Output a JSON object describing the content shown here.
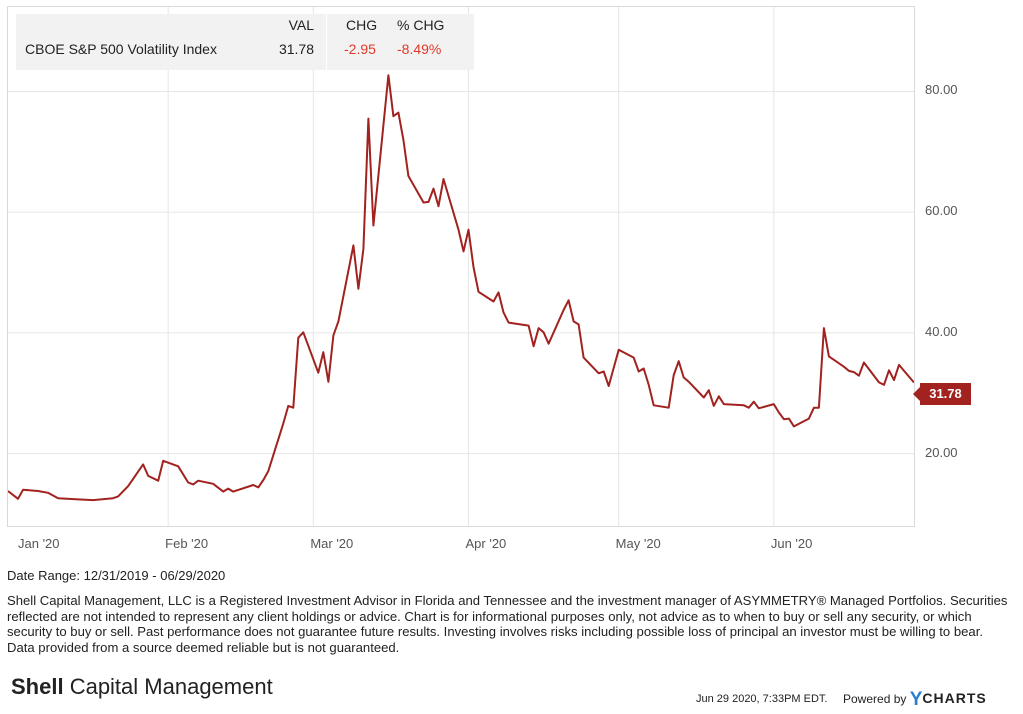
{
  "legend": {
    "headers": {
      "val": "VAL",
      "chg": "CHG",
      "pct": "% CHG"
    },
    "name": "CBOE S&P 500 Volatility Index",
    "val": "31.78",
    "chg": "-2.95",
    "pct": "-8.49%"
  },
  "last_badge": "31.78",
  "date_range": "Date Range: 12/31/2019 - 06/29/2020",
  "disclaimer": "Shell Capital Management, LLC is a Registered Investment Advisor in Florida and Tennessee and the investment manager of ASYMMETRY® Managed Portfolios. Securities reflected are not intended to represent any client holdings or advice. Chart is for informational purposes only, not advice as to when to buy or sell any security, or which security to buy or sell. Past performance does not guarantee future results. Investing involves risks including possible loss of principal an investor must be willing to bear. Data provided from a source deemed reliable but is not guaranteed.",
  "brand": {
    "bold": "Shell",
    "rest": " Capital Management"
  },
  "timestamp": "Jun 29 2020, 7:33PM EDT.",
  "powered": {
    "label": "Powered by",
    "y": "Y",
    "charts": "CHARTS"
  },
  "colors": {
    "line": "#a1221e",
    "negative": "#e0392b",
    "grid": "#e6e6e6",
    "legend_bg": "#f2f2f2",
    "brand_blue": "#2a7fd1"
  },
  "chart_data": {
    "type": "line",
    "x_tick_labels": [
      "Jan '20",
      "Feb '20",
      "Mar '20",
      "Apr '20",
      "May '20",
      "Jun '20"
    ],
    "y_tick_labels": [
      "20.00",
      "40.00",
      "60.00",
      "80.00"
    ],
    "ylim": [
      8,
      94
    ],
    "xlim": [
      "2019-12-31",
      "2020-06-29"
    ],
    "grid": true,
    "series": [
      {
        "name": "CBOE S&P 500 Volatility Index",
        "points": [
          [
            "2019-12-31",
            13.8
          ],
          [
            "2020-01-02",
            12.5
          ],
          [
            "2020-01-03",
            14.0
          ],
          [
            "2020-01-06",
            13.8
          ],
          [
            "2020-01-08",
            13.5
          ],
          [
            "2020-01-10",
            12.6
          ],
          [
            "2020-01-14",
            12.4
          ],
          [
            "2020-01-17",
            12.3
          ],
          [
            "2020-01-21",
            12.6
          ],
          [
            "2020-01-22",
            12.9
          ],
          [
            "2020-01-24",
            14.6
          ],
          [
            "2020-01-27",
            18.2
          ],
          [
            "2020-01-28",
            16.3
          ],
          [
            "2020-01-30",
            15.5
          ],
          [
            "2020-01-31",
            18.8
          ],
          [
            "2020-02-03",
            17.9
          ],
          [
            "2020-02-05",
            15.2
          ],
          [
            "2020-02-06",
            14.9
          ],
          [
            "2020-02-07",
            15.5
          ],
          [
            "2020-02-10",
            15.0
          ],
          [
            "2020-02-12",
            13.7
          ],
          [
            "2020-02-13",
            14.2
          ],
          [
            "2020-02-14",
            13.7
          ],
          [
            "2020-02-18",
            14.8
          ],
          [
            "2020-02-19",
            14.4
          ],
          [
            "2020-02-20",
            15.6
          ],
          [
            "2020-02-21",
            17.1
          ],
          [
            "2020-02-24",
            25.0
          ],
          [
            "2020-02-25",
            27.9
          ],
          [
            "2020-02-26",
            27.6
          ],
          [
            "2020-02-27",
            39.2
          ],
          [
            "2020-02-28",
            40.1
          ],
          [
            "2020-03-02",
            33.4
          ],
          [
            "2020-03-03",
            36.8
          ],
          [
            "2020-03-04",
            31.9
          ],
          [
            "2020-03-05",
            39.6
          ],
          [
            "2020-03-06",
            41.9
          ],
          [
            "2020-03-09",
            54.5
          ],
          [
            "2020-03-10",
            47.3
          ],
          [
            "2020-03-11",
            53.9
          ],
          [
            "2020-03-12",
            75.5
          ],
          [
            "2020-03-13",
            57.8
          ],
          [
            "2020-03-16",
            82.7
          ],
          [
            "2020-03-17",
            75.9
          ],
          [
            "2020-03-18",
            76.5
          ],
          [
            "2020-03-19",
            72.0
          ],
          [
            "2020-03-20",
            66.0
          ],
          [
            "2020-03-23",
            61.6
          ],
          [
            "2020-03-24",
            61.7
          ],
          [
            "2020-03-25",
            63.9
          ],
          [
            "2020-03-26",
            61.0
          ],
          [
            "2020-03-27",
            65.5
          ],
          [
            "2020-03-30",
            57.1
          ],
          [
            "2020-03-31",
            53.5
          ],
          [
            "2020-04-01",
            57.1
          ],
          [
            "2020-04-02",
            50.9
          ],
          [
            "2020-04-03",
            46.8
          ],
          [
            "2020-04-06",
            45.2
          ],
          [
            "2020-04-07",
            46.7
          ],
          [
            "2020-04-08",
            43.4
          ],
          [
            "2020-04-09",
            41.7
          ],
          [
            "2020-04-13",
            41.2
          ],
          [
            "2020-04-14",
            37.8
          ],
          [
            "2020-04-15",
            40.8
          ],
          [
            "2020-04-16",
            40.1
          ],
          [
            "2020-04-17",
            38.2
          ],
          [
            "2020-04-20",
            43.8
          ],
          [
            "2020-04-21",
            45.4
          ],
          [
            "2020-04-22",
            41.9
          ],
          [
            "2020-04-23",
            41.4
          ],
          [
            "2020-04-24",
            35.9
          ],
          [
            "2020-04-27",
            33.3
          ],
          [
            "2020-04-28",
            33.6
          ],
          [
            "2020-04-29",
            31.2
          ],
          [
            "2020-04-30",
            34.2
          ],
          [
            "2020-05-01",
            37.2
          ],
          [
            "2020-05-04",
            35.9
          ],
          [
            "2020-05-05",
            33.6
          ],
          [
            "2020-05-06",
            34.1
          ],
          [
            "2020-05-07",
            31.4
          ],
          [
            "2020-05-08",
            28.0
          ],
          [
            "2020-05-11",
            27.6
          ],
          [
            "2020-05-12",
            33.0
          ],
          [
            "2020-05-13",
            35.3
          ],
          [
            "2020-05-14",
            32.6
          ],
          [
            "2020-05-15",
            31.9
          ],
          [
            "2020-05-18",
            29.3
          ],
          [
            "2020-05-19",
            30.5
          ],
          [
            "2020-05-20",
            27.9
          ],
          [
            "2020-05-21",
            29.5
          ],
          [
            "2020-05-22",
            28.2
          ],
          [
            "2020-05-26",
            28.0
          ],
          [
            "2020-05-27",
            27.6
          ],
          [
            "2020-05-28",
            28.6
          ],
          [
            "2020-05-29",
            27.5
          ],
          [
            "2020-06-01",
            28.2
          ],
          [
            "2020-06-02",
            26.8
          ],
          [
            "2020-06-03",
            25.7
          ],
          [
            "2020-06-04",
            25.8
          ],
          [
            "2020-06-05",
            24.5
          ],
          [
            "2020-06-08",
            25.8
          ],
          [
            "2020-06-09",
            27.6
          ],
          [
            "2020-06-10",
            27.6
          ],
          [
            "2020-06-11",
            40.8
          ],
          [
            "2020-06-12",
            36.1
          ],
          [
            "2020-06-15",
            34.4
          ],
          [
            "2020-06-16",
            33.7
          ],
          [
            "2020-06-17",
            33.5
          ],
          [
            "2020-06-18",
            32.9
          ],
          [
            "2020-06-19",
            35.1
          ],
          [
            "2020-06-22",
            31.8
          ],
          [
            "2020-06-23",
            31.4
          ],
          [
            "2020-06-24",
            33.8
          ],
          [
            "2020-06-25",
            32.2
          ],
          [
            "2020-06-26",
            34.7
          ],
          [
            "2020-06-29",
            31.78
          ]
        ]
      }
    ]
  }
}
